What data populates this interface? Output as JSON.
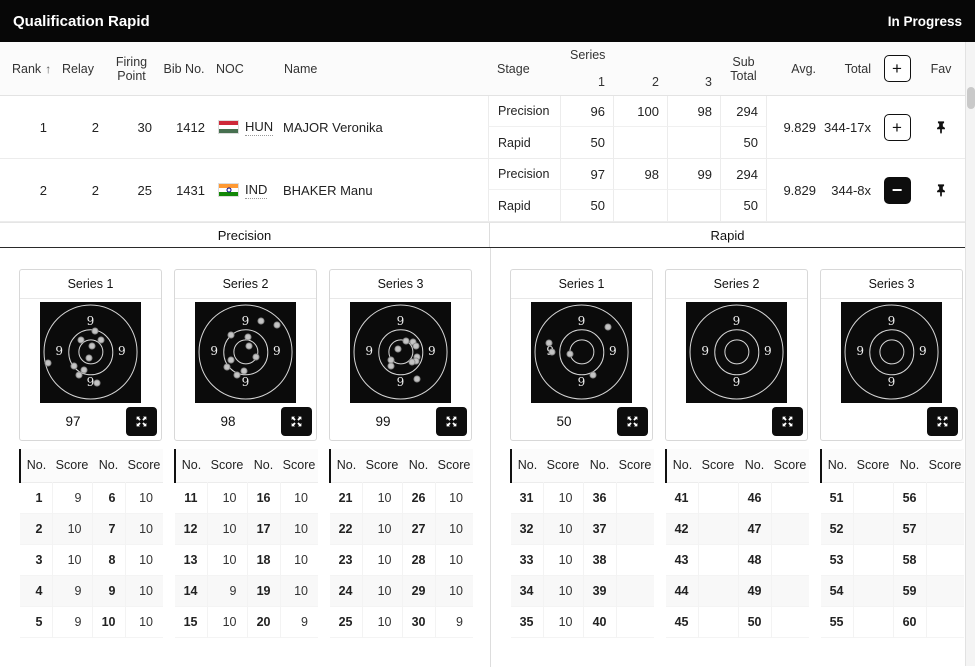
{
  "header": {
    "title": "Qualification Rapid",
    "status": "In Progress"
  },
  "results": {
    "columns": {
      "rank": "Rank",
      "sort_arrow": "↑",
      "relay": "Relay",
      "firing_point": "Firing Point",
      "bib": "Bib No.",
      "noc": "NOC",
      "name": "Name",
      "stage": "Stage",
      "series": "Series",
      "s1": "1",
      "s2": "2",
      "s3": "3",
      "sub_total": "Sub Total",
      "avg": "Avg.",
      "total": "Total",
      "expand_all": "+",
      "fav": "Fav"
    },
    "rows": [
      {
        "rank": "1",
        "relay": "2",
        "firing_point": "30",
        "bib": "1412",
        "noc": "HUN",
        "name": "MAJOR Veronika",
        "avg": "9.829",
        "total": "344-17x",
        "toggle": "+",
        "stages": [
          {
            "label": "Precision",
            "s1": "96",
            "s2": "100",
            "s3": "98",
            "sub": "294"
          },
          {
            "label": "Rapid",
            "s1": "50",
            "s2": "",
            "s3": "",
            "sub": "50"
          }
        ]
      },
      {
        "rank": "2",
        "relay": "2",
        "firing_point": "25",
        "bib": "1431",
        "noc": "IND",
        "name": "BHAKER Manu",
        "avg": "9.829",
        "total": "344-8x",
        "toggle": "−",
        "stages": [
          {
            "label": "Precision",
            "s1": "97",
            "s2": "98",
            "s3": "99",
            "sub": "294"
          },
          {
            "label": "Rapid",
            "s1": "50",
            "s2": "",
            "s3": "",
            "sub": "50"
          }
        ]
      }
    ]
  },
  "flags": {
    "hun": [
      "#ce2939",
      "#ffffff",
      "#477050"
    ],
    "ind": [
      "#ff9933",
      "#ffffff",
      "#138808"
    ]
  },
  "sections": [
    {
      "title": "Precision",
      "cards": [
        {
          "series": "Series 1",
          "score": "97",
          "ring_label": "9",
          "shots": [
            [
              54,
              29
            ],
            [
              41,
              38
            ],
            [
              60,
              38
            ],
            [
              51,
              44
            ],
            [
              49,
              56
            ],
            [
              8,
              61
            ],
            [
              34,
              64
            ],
            [
              44,
              68
            ],
            [
              39,
              73
            ],
            [
              56,
              81
            ]
          ],
          "table": {
            "headers": [
              "No.",
              "Score",
              "No.",
              "Score"
            ],
            "rows": [
              [
                "1",
                "9",
                "6",
                "10"
              ],
              [
                "2",
                "10",
                "7",
                "10"
              ],
              [
                "3",
                "10",
                "8",
                "10"
              ],
              [
                "4",
                "9",
                "9",
                "10"
              ],
              [
                "5",
                "9",
                "10",
                "10"
              ]
            ]
          }
        },
        {
          "series": "Series 2",
          "score": "98",
          "ring_label": "9",
          "shots": [
            [
              65,
              19
            ],
            [
              81,
              23
            ],
            [
              36,
              33
            ],
            [
              52,
              35
            ],
            [
              53,
              44
            ],
            [
              60,
              55
            ],
            [
              36,
              58
            ],
            [
              32,
              65
            ],
            [
              49,
              69
            ],
            [
              42,
              73
            ]
          ],
          "table": {
            "headers": [
              "No.",
              "Score",
              "No.",
              "Score"
            ],
            "rows": [
              [
                "11",
                "10",
                "16",
                "10"
              ],
              [
                "12",
                "10",
                "17",
                "10"
              ],
              [
                "13",
                "10",
                "18",
                "10"
              ],
              [
                "14",
                "9",
                "19",
                "10"
              ],
              [
                "15",
                "10",
                "20",
                "9"
              ]
            ]
          }
        },
        {
          "series": "Series 3",
          "score": "99",
          "ring_label": "9",
          "shots": [
            [
              55,
              39
            ],
            [
              62,
              40
            ],
            [
              65,
              44
            ],
            [
              48,
              47
            ],
            [
              66,
              55
            ],
            [
              65,
              59
            ],
            [
              41,
              58
            ],
            [
              61,
              60
            ],
            [
              41,
              64
            ],
            [
              66,
              77
            ]
          ],
          "table": {
            "headers": [
              "No.",
              "Score",
              "No.",
              "Score"
            ],
            "rows": [
              [
                "21",
                "10",
                "26",
                "10"
              ],
              [
                "22",
                "10",
                "27",
                "10"
              ],
              [
                "23",
                "10",
                "28",
                "10"
              ],
              [
                "24",
                "10",
                "29",
                "10"
              ],
              [
                "25",
                "10",
                "30",
                "9"
              ]
            ]
          }
        }
      ]
    },
    {
      "title": "Rapid",
      "cards": [
        {
          "series": "Series 1",
          "score": "50",
          "ring_label": "9",
          "shots": [
            [
              76,
              25
            ],
            [
              18,
              41
            ],
            [
              21,
              50
            ],
            [
              39,
              52
            ],
            [
              61,
              73
            ]
          ],
          "table": {
            "headers": [
              "No.",
              "Score",
              "No.",
              "Score"
            ],
            "rows": [
              [
                "31",
                "10",
                "36",
                ""
              ],
              [
                "32",
                "10",
                "37",
                ""
              ],
              [
                "33",
                "10",
                "38",
                ""
              ],
              [
                "34",
                "10",
                "39",
                ""
              ],
              [
                "35",
                "10",
                "40",
                ""
              ]
            ]
          }
        },
        {
          "series": "Series 2",
          "score": "",
          "ring_label": "9",
          "shots": [],
          "table": {
            "headers": [
              "No.",
              "Score",
              "No.",
              "Score"
            ],
            "rows": [
              [
                "41",
                "",
                "46",
                ""
              ],
              [
                "42",
                "",
                "47",
                ""
              ],
              [
                "43",
                "",
                "48",
                ""
              ],
              [
                "44",
                "",
                "49",
                ""
              ],
              [
                "45",
                "",
                "50",
                ""
              ]
            ]
          }
        },
        {
          "series": "Series 3",
          "score": "",
          "ring_label": "9",
          "shots": [],
          "table": {
            "headers": [
              "No.",
              "Score",
              "No.",
              "Score"
            ],
            "rows": [
              [
                "51",
                "",
                "56",
                ""
              ],
              [
                "52",
                "",
                "57",
                ""
              ],
              [
                "53",
                "",
                "58",
                ""
              ],
              [
                "54",
                "",
                "59",
                ""
              ],
              [
                "55",
                "",
                "60",
                ""
              ]
            ]
          }
        }
      ]
    }
  ]
}
